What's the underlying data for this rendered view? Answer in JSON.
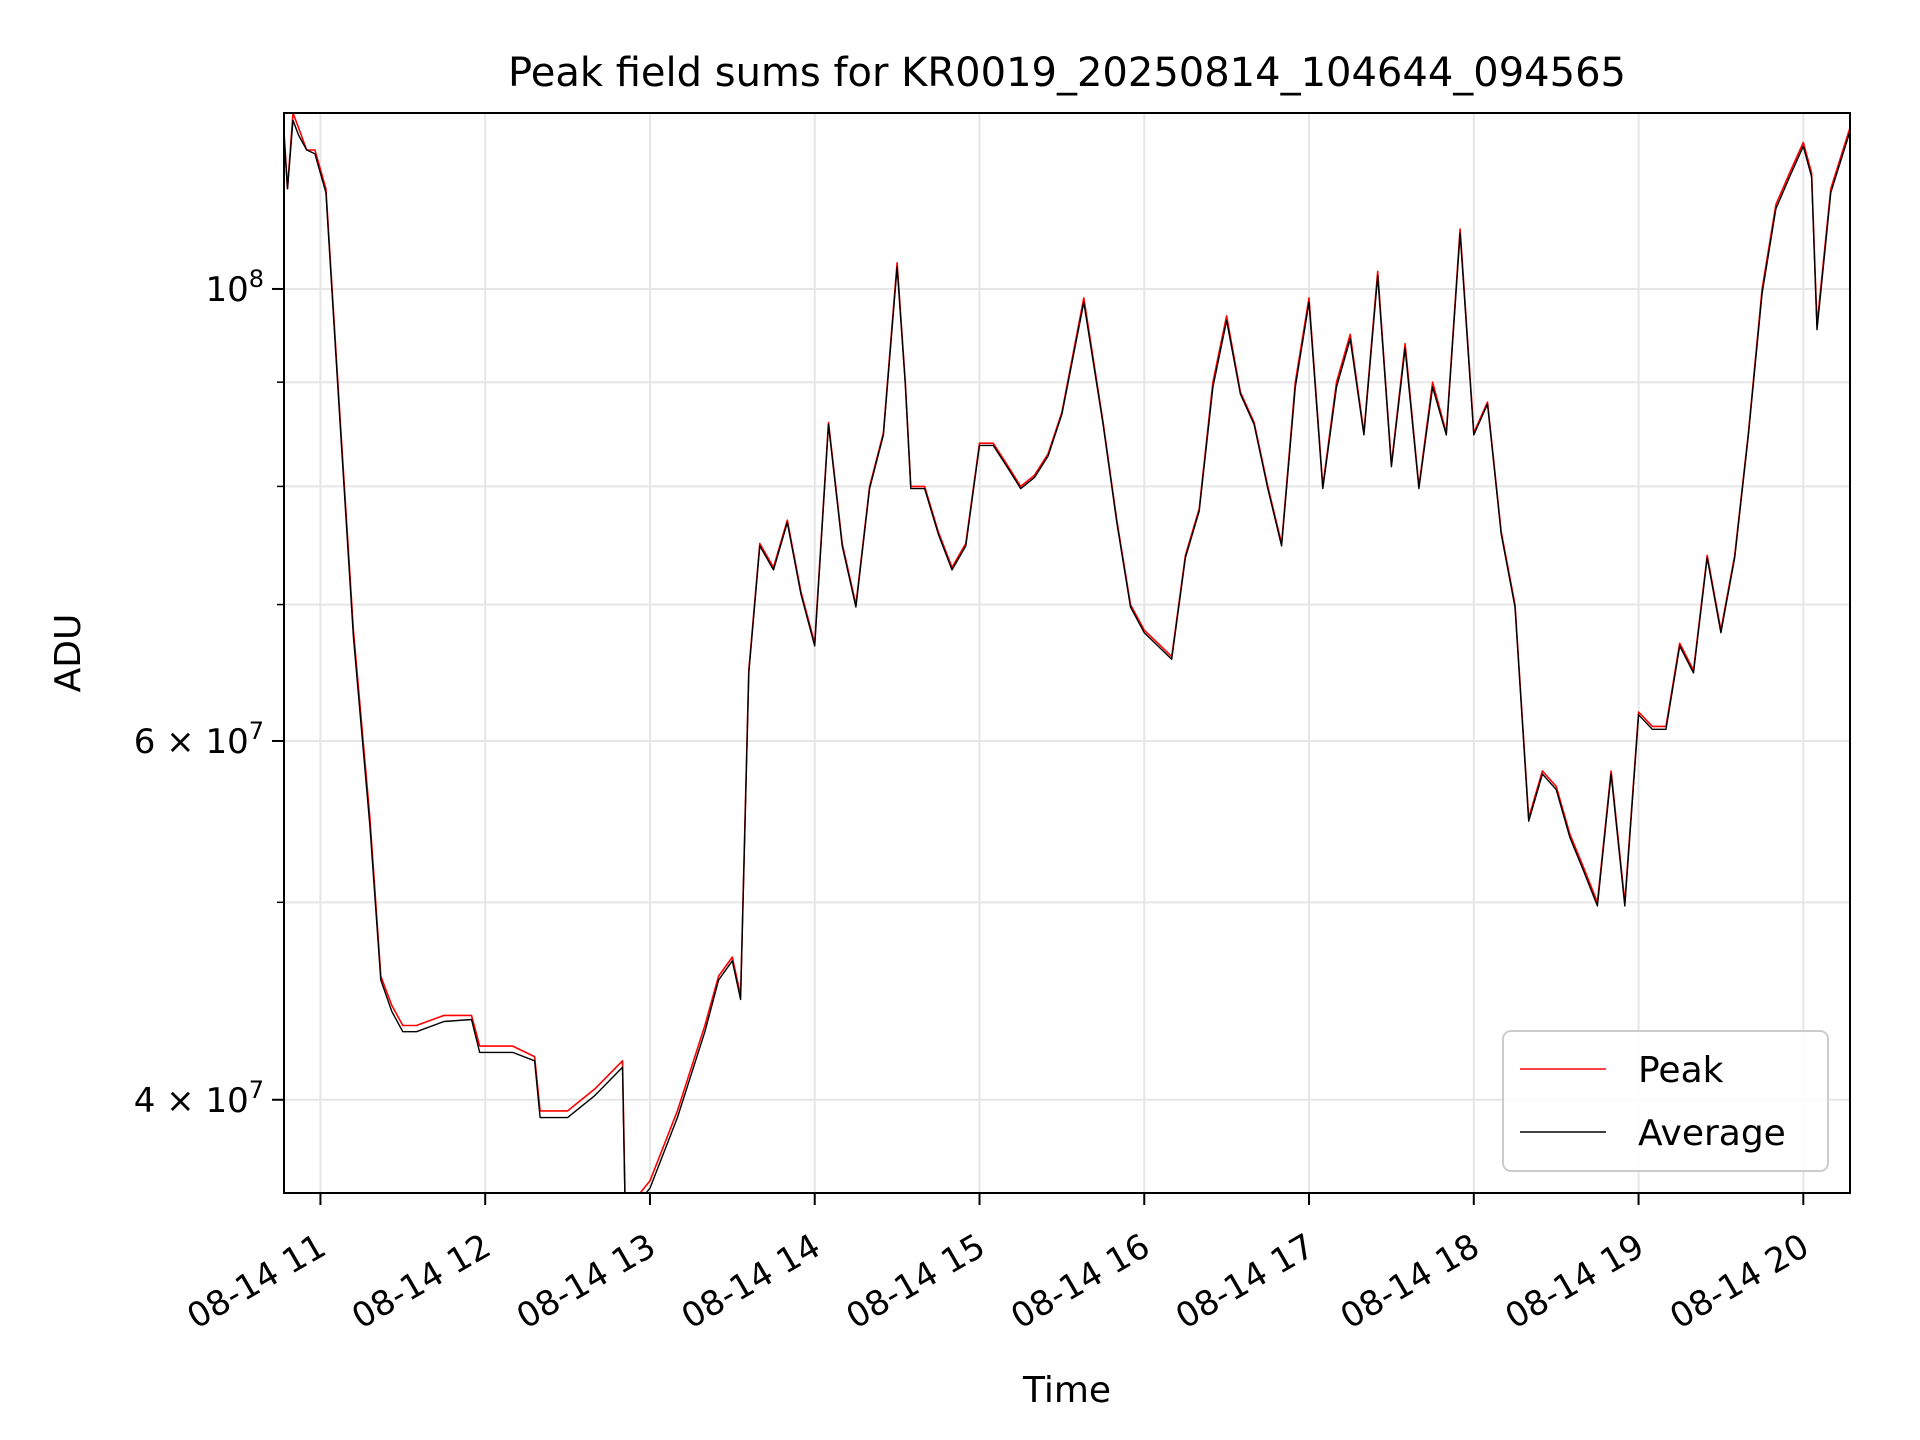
{
  "chart_data": {
    "type": "line",
    "title": "Peak field sums for KR0019_20250814_104644_094565",
    "xlabel": "Time",
    "ylabel": "ADU",
    "x_range": [
      "2025-08-14T10:46:44",
      "2025-08-14T20:17:00"
    ],
    "ylim": [
      36000000,
      122000000
    ],
    "y_scale": "log",
    "grid": true,
    "legend_position": "lower right",
    "x_ticks": [
      "08-14 11",
      "08-14 12",
      "08-14 13",
      "08-14 14",
      "08-14 15",
      "08-14 16",
      "08-14 17",
      "08-14 18",
      "08-14 19",
      "08-14 20"
    ],
    "y_ticks_major": [
      {
        "value": 100000000,
        "mantissa": "",
        "base": "10",
        "exp": "8"
      },
      {
        "value": 60000000,
        "mantissa": "6 × ",
        "base": "10",
        "exp": "7"
      },
      {
        "value": 40000000,
        "mantissa": "4 × ",
        "base": "10",
        "exp": "7"
      }
    ],
    "y_ticks_minor": [
      50000000,
      70000000,
      80000000,
      90000000
    ],
    "x": [
      "10:46",
      "10:48",
      "10:50",
      "10:52",
      "10:55",
      "10:58",
      "11:02",
      "11:07",
      "11:12",
      "11:18",
      "11:22",
      "11:26",
      "11:30",
      "11:35",
      "11:45",
      "11:55",
      "11:58",
      "12:00",
      "12:10",
      "12:18",
      "12:20",
      "12:25",
      "12:30",
      "12:40",
      "12:50",
      "12:51",
      "12:55",
      "13:00",
      "13:10",
      "13:20",
      "13:25",
      "13:30",
      "13:33",
      "13:36",
      "13:40",
      "13:45",
      "13:50",
      "13:55",
      "14:00",
      "14:05",
      "14:10",
      "14:15",
      "14:20",
      "14:25",
      "14:30",
      "14:33",
      "14:35",
      "14:40",
      "14:45",
      "14:50",
      "14:55",
      "15:00",
      "15:05",
      "15:10",
      "15:15",
      "15:20",
      "15:25",
      "15:30",
      "15:38",
      "15:45",
      "15:50",
      "15:55",
      "16:00",
      "16:05",
      "16:10",
      "16:15",
      "16:20",
      "16:25",
      "16:30",
      "16:35",
      "16:40",
      "16:45",
      "16:50",
      "16:55",
      "17:00",
      "17:05",
      "17:10",
      "17:15",
      "17:20",
      "17:25",
      "17:30",
      "17:35",
      "17:40",
      "17:45",
      "17:50",
      "17:55",
      "18:00",
      "18:05",
      "18:10",
      "18:15",
      "18:20",
      "18:25",
      "18:30",
      "18:35",
      "18:40",
      "18:45",
      "18:50",
      "18:55",
      "19:00",
      "19:05",
      "19:10",
      "19:15",
      "19:20",
      "19:25",
      "19:30",
      "19:35",
      "19:40",
      "19:45",
      "19:50",
      "19:55",
      "20:00",
      "20:03",
      "20:05",
      "20:10",
      "20:17"
    ],
    "series": [
      {
        "name": "Peak",
        "color": "#ff0000",
        "values": [
          124000000,
          112000000,
          122000000,
          120000000,
          117000000,
          117000000,
          112000000,
          87000000,
          68000000,
          55000000,
          46000000,
          44500000,
          43500000,
          43500000,
          44000000,
          44000000,
          42500000,
          42500000,
          42500000,
          42000000,
          39500000,
          39500000,
          39500000,
          40500000,
          41800000,
          35500000,
          35800000,
          36500000,
          39500000,
          43500000,
          46000000,
          47000000,
          45000000,
          65000000,
          75000000,
          73000000,
          77000000,
          71000000,
          67000000,
          86000000,
          75000000,
          70000000,
          80000000,
          85000000,
          103000000,
          90000000,
          80000000,
          80000000,
          76000000,
          73000000,
          75000000,
          84000000,
          84000000,
          82000000,
          80000000,
          81000000,
          83000000,
          87000000,
          99000000,
          86000000,
          77000000,
          70000000,
          68000000,
          67000000,
          66000000,
          74000000,
          78000000,
          90000000,
          97000000,
          89000000,
          86000000,
          80000000,
          75000000,
          90000000,
          99000000,
          80000000,
          90000000,
          95000000,
          85000000,
          102000000,
          82000000,
          94000000,
          80000000,
          90000000,
          85000000,
          107000000,
          85000000,
          88000000,
          76000000,
          70000000,
          55000000,
          58000000,
          57000000,
          54000000,
          52000000,
          50000000,
          58000000,
          50000000,
          62000000,
          61000000,
          61000000,
          67000000,
          65000000,
          74000000,
          68000000,
          74000000,
          85000000,
          100000000,
          110000000,
          114000000,
          118000000,
          114000000,
          96000000,
          112000000,
          120000000
        ]
      },
      {
        "name": "Average",
        "color": "#000000",
        "values": [
          123000000,
          112000000,
          121000000,
          119000000,
          117000000,
          116500000,
          111500000,
          86500000,
          67500000,
          54500000,
          45800000,
          44200000,
          43200000,
          43200000,
          43700000,
          43800000,
          42200000,
          42200000,
          42200000,
          41800000,
          39200000,
          39200000,
          39200000,
          40200000,
          41500000,
          35200000,
          35500000,
          36200000,
          39200000,
          43200000,
          45800000,
          46800000,
          44800000,
          64800000,
          74800000,
          72800000,
          76800000,
          70800000,
          66800000,
          85800000,
          74800000,
          69800000,
          79800000,
          84800000,
          102500000,
          89800000,
          79800000,
          79800000,
          75800000,
          72800000,
          74800000,
          83800000,
          83800000,
          81800000,
          79800000,
          80800000,
          82800000,
          86800000,
          98500000,
          85800000,
          76800000,
          69800000,
          67800000,
          66800000,
          65800000,
          73800000,
          77800000,
          89500000,
          96500000,
          88800000,
          85800000,
          79800000,
          74800000,
          89500000,
          98500000,
          79800000,
          89500000,
          94500000,
          84800000,
          101500000,
          81800000,
          93500000,
          79800000,
          89500000,
          84800000,
          106500000,
          84800000,
          87800000,
          75800000,
          69800000,
          54800000,
          57800000,
          56800000,
          53800000,
          51800000,
          49800000,
          57800000,
          49800000,
          61800000,
          60800000,
          60800000,
          66800000,
          64800000,
          73800000,
          67800000,
          73800000,
          84800000,
          99500000,
          109500000,
          113500000,
          117500000,
          113500000,
          95500000,
          111500000,
          119500000
        ]
      }
    ]
  }
}
